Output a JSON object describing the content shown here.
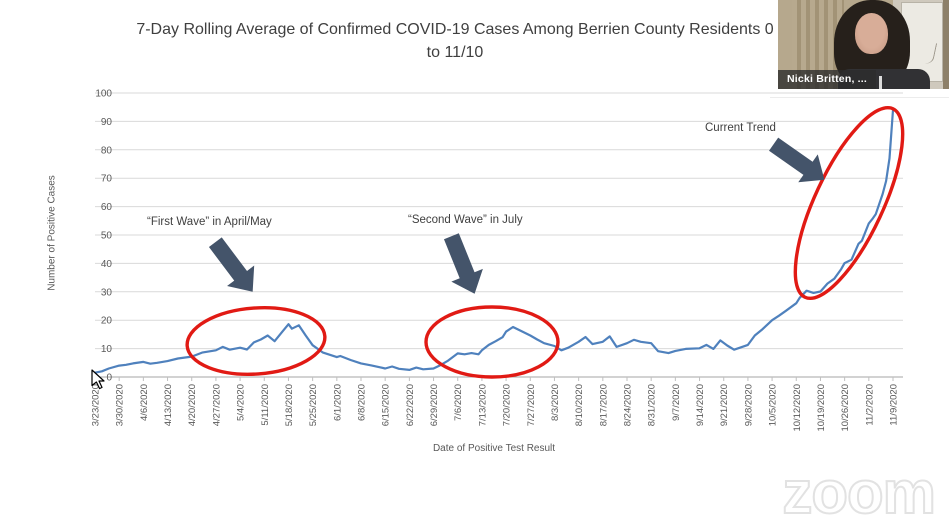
{
  "title": {
    "line1": "7-Day Rolling Average of Confirmed COVID-19 Cases Among Berrien County Residents 0",
    "line2": "to 11/10"
  },
  "chart_data": {
    "type": "line",
    "title": "7-Day Rolling Average of Confirmed COVID-19 Cases Among Berrien County Residents 0 to 11/10",
    "xlabel": "Date of Positive Test Result",
    "ylabel": "Number of Positive Cases",
    "ylim": [
      0,
      100
    ],
    "ytick_step": 10,
    "grid": true,
    "legend": "none",
    "x_start_date": "3/23/2020",
    "x_tick_labels": [
      "3/23/2020",
      "3/30/2020",
      "4/6/2020",
      "4/13/2020",
      "4/20/2020",
      "4/27/2020",
      "5/4/2020",
      "5/11/2020",
      "5/18/2020",
      "5/25/2020",
      "6/1/2020",
      "6/8/2020",
      "6/15/2020",
      "6/22/2020",
      "6/29/2020",
      "7/6/2020",
      "7/13/2020",
      "7/20/2020",
      "7/27/2020",
      "8/3/2020",
      "8/10/2020",
      "8/17/2020",
      "8/24/2020",
      "8/31/2020",
      "9/7/2020",
      "9/14/2020",
      "9/21/2020",
      "9/28/2020",
      "10/5/2020",
      "10/12/2020",
      "10/19/2020",
      "10/26/2020",
      "11/2/2020",
      "11/9/2020"
    ],
    "series": [
      {
        "name": "7-day rolling average of confirmed cases",
        "color": "#4f81bd",
        "points_format": "[day_offset_from_3/23/2020, cases]",
        "points": [
          [
            0,
            1.5
          ],
          [
            2,
            2
          ],
          [
            4,
            3
          ],
          [
            7,
            4
          ],
          [
            9,
            4.3
          ],
          [
            11,
            4.8
          ],
          [
            14,
            5.3
          ],
          [
            16,
            4.7
          ],
          [
            18,
            5
          ],
          [
            21,
            5.6
          ],
          [
            24,
            6.5
          ],
          [
            28,
            7.2
          ],
          [
            31,
            8.6
          ],
          [
            35,
            9.4
          ],
          [
            37,
            10.6
          ],
          [
            39,
            9.6
          ],
          [
            42,
            10.3
          ],
          [
            44,
            9.7
          ],
          [
            46,
            12.2
          ],
          [
            48,
            13.2
          ],
          [
            50,
            14.6
          ],
          [
            52,
            12.6
          ],
          [
            54,
            15.6
          ],
          [
            56,
            18.6
          ],
          [
            57,
            17
          ],
          [
            59,
            18.2
          ],
          [
            61,
            14.6
          ],
          [
            63,
            11.2
          ],
          [
            66,
            8.6
          ],
          [
            70,
            7
          ],
          [
            71,
            7.4
          ],
          [
            74,
            6
          ],
          [
            77,
            4.8
          ],
          [
            80,
            4.1
          ],
          [
            84,
            3
          ],
          [
            86,
            3.7
          ],
          [
            88,
            2.9
          ],
          [
            91,
            2.5
          ],
          [
            93,
            3.3
          ],
          [
            95,
            2.7
          ],
          [
            98,
            3
          ],
          [
            100,
            4.2
          ],
          [
            102,
            5.6
          ],
          [
            105,
            8.3
          ],
          [
            107,
            8
          ],
          [
            109,
            8.4
          ],
          [
            111,
            8
          ],
          [
            112,
            9.4
          ],
          [
            114,
            11.3
          ],
          [
            116,
            12.6
          ],
          [
            118,
            14
          ],
          [
            119,
            16
          ],
          [
            121,
            17.6
          ],
          [
            123,
            16.4
          ],
          [
            126,
            14.6
          ],
          [
            128,
            13.2
          ],
          [
            130,
            11.9
          ],
          [
            133,
            10.9
          ],
          [
            135,
            9.4
          ],
          [
            137,
            10.3
          ],
          [
            140,
            12.4
          ],
          [
            142,
            14.1
          ],
          [
            144,
            11.6
          ],
          [
            147,
            12.4
          ],
          [
            149,
            14.3
          ],
          [
            151,
            10.6
          ],
          [
            154,
            11.9
          ],
          [
            156,
            13.1
          ],
          [
            158,
            12.4
          ],
          [
            161,
            11.9
          ],
          [
            163,
            9.1
          ],
          [
            166,
            8.4
          ],
          [
            168,
            9.2
          ],
          [
            171,
            9.9
          ],
          [
            175,
            10.1
          ],
          [
            177,
            11.3
          ],
          [
            179,
            9.9
          ],
          [
            181,
            12.9
          ],
          [
            183,
            11.1
          ],
          [
            185,
            9.6
          ],
          [
            189,
            11.3
          ],
          [
            191,
            14.6
          ],
          [
            193,
            16.6
          ],
          [
            196,
            20
          ],
          [
            198,
            21.6
          ],
          [
            200,
            23.3
          ],
          [
            203,
            26
          ],
          [
            204,
            27.9
          ],
          [
            206,
            30.4
          ],
          [
            208,
            29.6
          ],
          [
            210,
            30.1
          ],
          [
            212,
            32.9
          ],
          [
            214,
            34.6
          ],
          [
            216,
            38
          ],
          [
            217,
            40.1
          ],
          [
            219,
            41.3
          ],
          [
            221,
            46.9
          ],
          [
            222,
            48
          ],
          [
            224,
            54.1
          ],
          [
            225,
            55.6
          ],
          [
            226,
            57.3
          ],
          [
            228,
            64.4
          ],
          [
            229,
            69
          ],
          [
            230,
            77
          ],
          [
            231,
            94
          ]
        ]
      }
    ],
    "annotations": [
      {
        "text": "“First Wave” in April/May"
      },
      {
        "text": "“Second Wave” in July"
      },
      {
        "text": "Current Trend"
      }
    ],
    "highlight_color": "#e11a14",
    "arrow_color": "#44546a",
    "gridline_color": "#d9d9d9",
    "axis_text_color": "#595959"
  },
  "webcam": {
    "participant_name": "Nicki Britten, ..."
  },
  "watermark": {
    "text": "zoom"
  }
}
